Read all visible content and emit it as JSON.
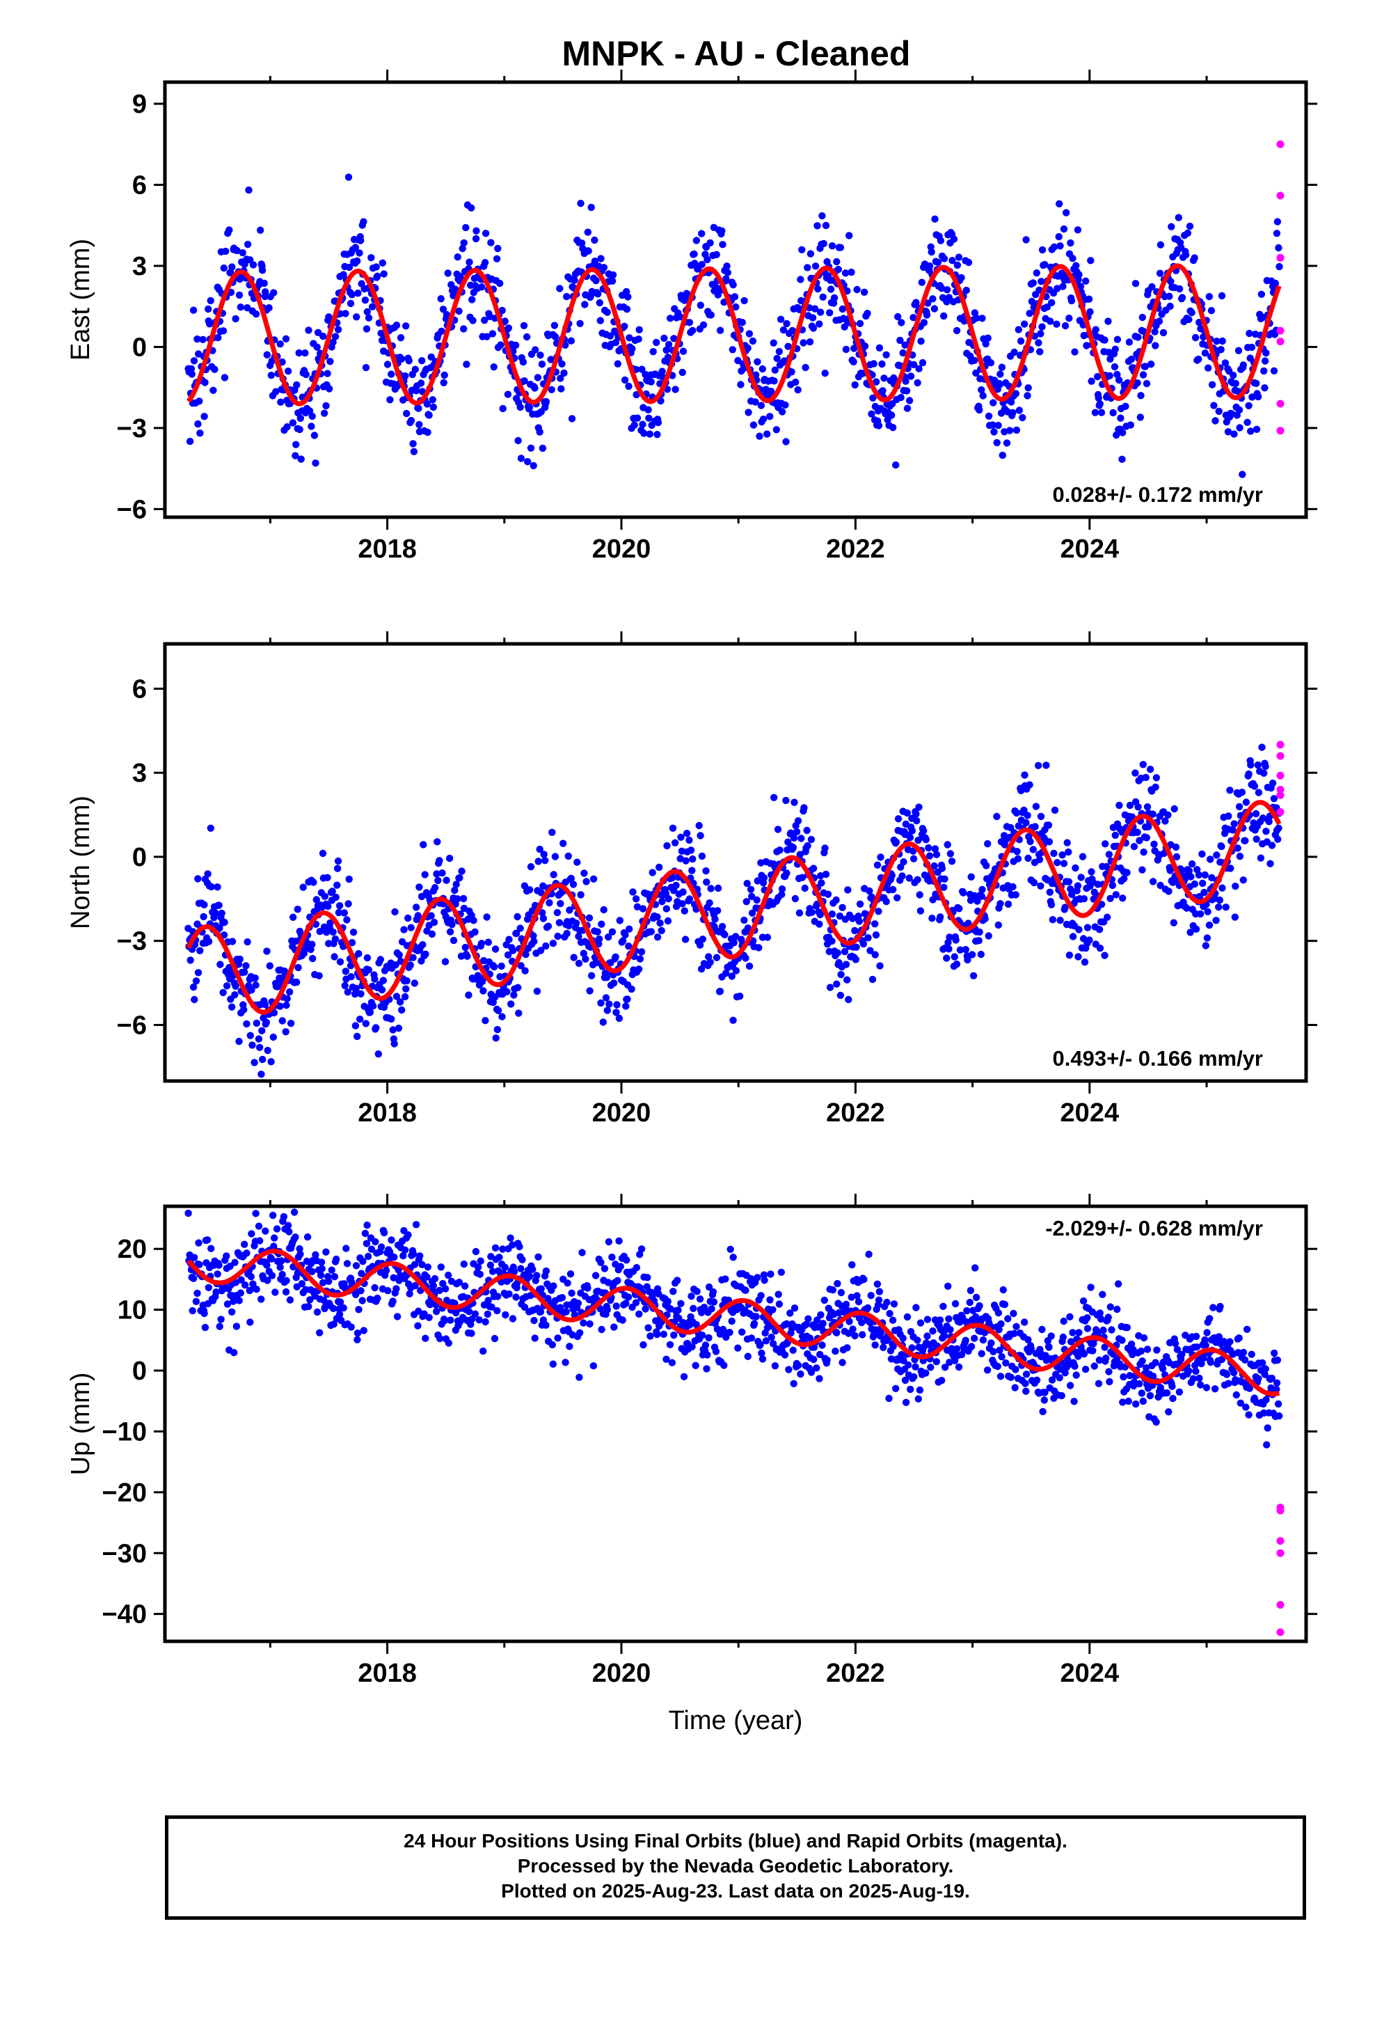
{
  "chart_data": {
    "type": "scatter",
    "title": "MNPK  - AU - Cleaned",
    "xlabel": "Time (year)",
    "xlim": [
      2016.1,
      2025.85
    ],
    "xticks": [
      2018,
      2020,
      2022,
      2024
    ],
    "colors": {
      "final": "#0000ff",
      "rapid": "#ff00ff",
      "model": "#ff0000"
    },
    "panels": [
      {
        "id": "east",
        "ylabel": "East (mm)",
        "ylim": [
          -6.3,
          9.8
        ],
        "yticks": [
          9,
          6,
          3,
          0,
          -3,
          -6
        ],
        "rate_label": "0.028+/- 0.172 mm/yr",
        "rate_position": "bottom-right",
        "model": {
          "offset": 0.45,
          "trend_mm_per_yr": 0.028,
          "amplitude": 2.45,
          "phase_year": 0.75
        },
        "scatter_sd": 1.1,
        "rapid_values": [
          7.5,
          5.6,
          3.3,
          0.6,
          0.2,
          -2.1,
          -3.1
        ]
      },
      {
        "id": "north",
        "ylabel": "North (mm)",
        "ylim": [
          -8.0,
          7.6
        ],
        "yticks": [
          6,
          3,
          0,
          -3,
          -6
        ],
        "rate_label": "0.493+/- 0.166 mm/yr",
        "rate_position": "bottom-right",
        "model": {
          "offset": -1.9,
          "trend_mm_per_yr": 0.493,
          "amplitude": 1.65,
          "phase_year": 0.45
        },
        "scatter_sd": 0.95,
        "rapid_values": [
          4.0,
          3.6,
          2.9,
          2.4,
          2.2,
          1.6
        ]
      },
      {
        "id": "up",
        "ylabel": "Up (mm)",
        "ylim": [
          -44.5,
          27.0
        ],
        "yticks": [
          20,
          10,
          0,
          -10,
          -20,
          -30,
          -40
        ],
        "rate_label": "-2.029+/- 0.628 mm/yr",
        "rate_position": "top-right",
        "model": {
          "offset": 8.5,
          "trend_mm_per_yr": -2.029,
          "amplitude": 3.1,
          "phase_year": 0.05
        },
        "scatter_sd": 3.6,
        "rapid_values": [
          -22.5,
          -23.0,
          -28.0,
          -30.0,
          -38.5,
          -43.0
        ]
      }
    ]
  },
  "caption": {
    "line1": "24 Hour Positions Using Final Orbits (blue) and Rapid Orbits (magenta).",
    "line2": "Processed by the Nevada Geodetic Laboratory.",
    "line3": "Plotted on 2025-Aug-23. Last data on 2025-Aug-19."
  }
}
